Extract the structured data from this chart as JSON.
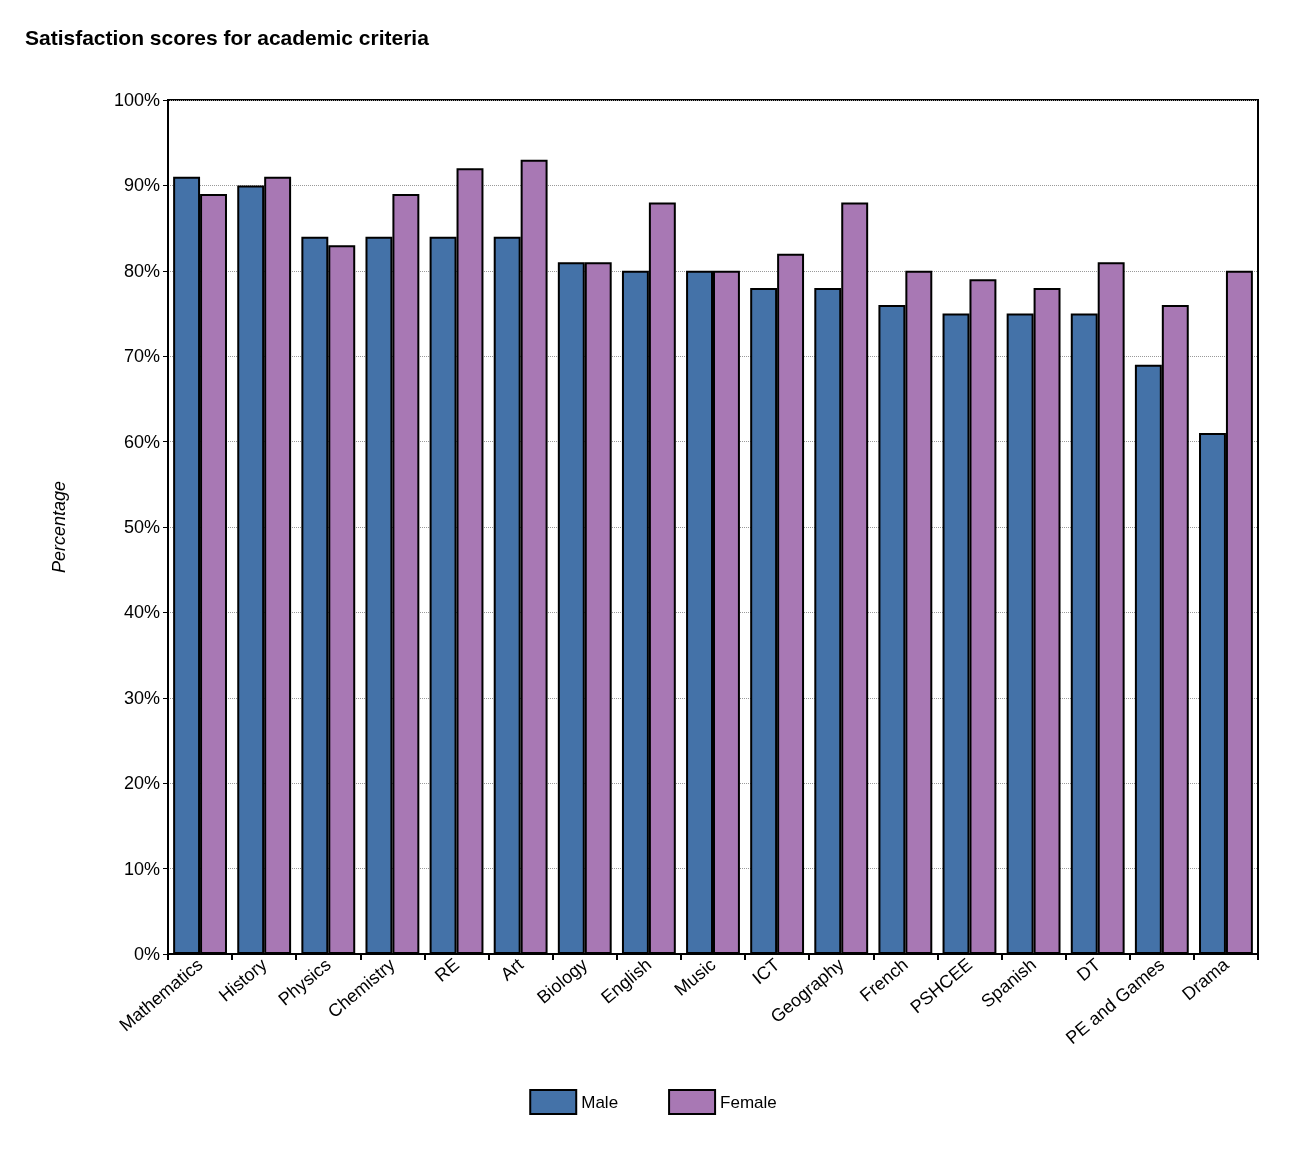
{
  "chart_data": {
    "type": "bar",
    "title": "Satisfaction scores for academic criteria",
    "ylabel": "Percentage",
    "categories": [
      "Mathematics",
      "History",
      "Physics",
      "Chemistry",
      "RE",
      "Art",
      "Biology",
      "English",
      "Music",
      "ICT",
      "Geography",
      "French",
      "PSHCEE",
      "Spanish",
      "DT",
      "PE and Games",
      "Drama"
    ],
    "series": [
      {
        "name": "Male",
        "color": "#4472a8",
        "values": [
          91,
          90,
          84,
          84,
          84,
          84,
          81,
          80,
          80,
          78,
          78,
          76,
          75,
          75,
          75,
          69,
          61
        ]
      },
      {
        "name": "Female",
        "color": "#a878b4",
        "values": [
          89,
          91,
          83,
          89,
          92,
          93,
          81,
          88,
          80,
          82,
          88,
          80,
          79,
          78,
          81,
          76,
          80
        ]
      }
    ],
    "ylim": [
      0,
      100
    ],
    "yticks": [
      {
        "value": 0,
        "label": "0%"
      },
      {
        "value": 10,
        "label": "10%"
      },
      {
        "value": 20,
        "label": "20%"
      },
      {
        "value": 30,
        "label": "30%"
      },
      {
        "value": 40,
        "label": "40%"
      },
      {
        "value": 50,
        "label": "50%"
      },
      {
        "value": 60,
        "label": "60%"
      },
      {
        "value": 70,
        "label": "70%"
      },
      {
        "value": 80,
        "label": "80%"
      },
      {
        "value": 90,
        "label": "90%"
      },
      {
        "value": 100,
        "label": "100%"
      }
    ],
    "grid": "y",
    "legend": "bottom"
  }
}
